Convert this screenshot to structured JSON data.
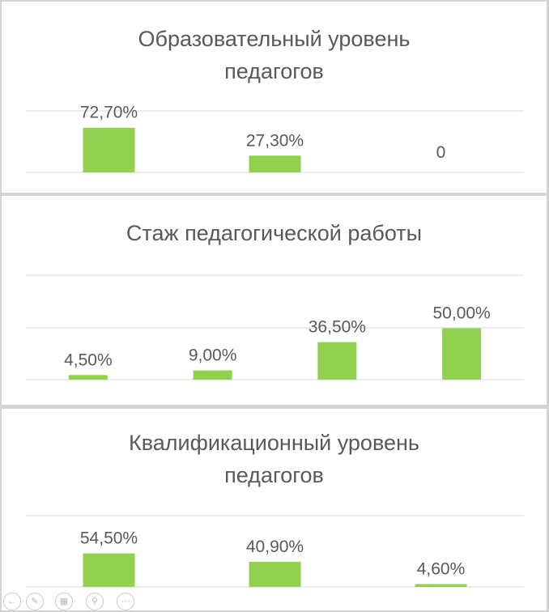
{
  "chart_data": [
    {
      "type": "bar",
      "title": "Образовательный уровень педагогов",
      "title_lines": [
        "Образовательный уровень",
        "педагогов"
      ],
      "categories": [
        "",
        "",
        ""
      ],
      "values": [
        72.7,
        27.3,
        0
      ],
      "data_labels": [
        "72,70%",
        "27,30%",
        "0"
      ],
      "ylim": [
        0,
        100
      ],
      "grid": true,
      "legend": "none",
      "color": "#92d050"
    },
    {
      "type": "bar",
      "title": "Стаж педагогической работы",
      "title_lines": [
        "Стаж педагогической работы"
      ],
      "categories": [
        "",
        "",
        "",
        ""
      ],
      "values": [
        4.5,
        9.0,
        36.5,
        50.0
      ],
      "data_labels": [
        "4,50%",
        "9,00%",
        "36,50%",
        "50,00%"
      ],
      "ylim": [
        0,
        100
      ],
      "grid": true,
      "legend": "none",
      "color": "#92d050"
    },
    {
      "type": "bar",
      "title": "Квалификационный уровень педагогов",
      "title_lines": [
        "Квалификационный уровень",
        "педагогов"
      ],
      "categories": [
        "",
        "",
        ""
      ],
      "values": [
        54.5,
        40.9,
        4.6
      ],
      "data_labels": [
        "54,50%",
        "40,90%",
        "4,60%"
      ],
      "ylim": [
        0,
        100
      ],
      "grid": true,
      "legend": "none",
      "color": "#92d050"
    }
  ],
  "toolbar": {
    "icons": [
      "arrow-icon",
      "pen-icon",
      "slides-icon",
      "zoom-icon",
      "more-icon"
    ]
  }
}
